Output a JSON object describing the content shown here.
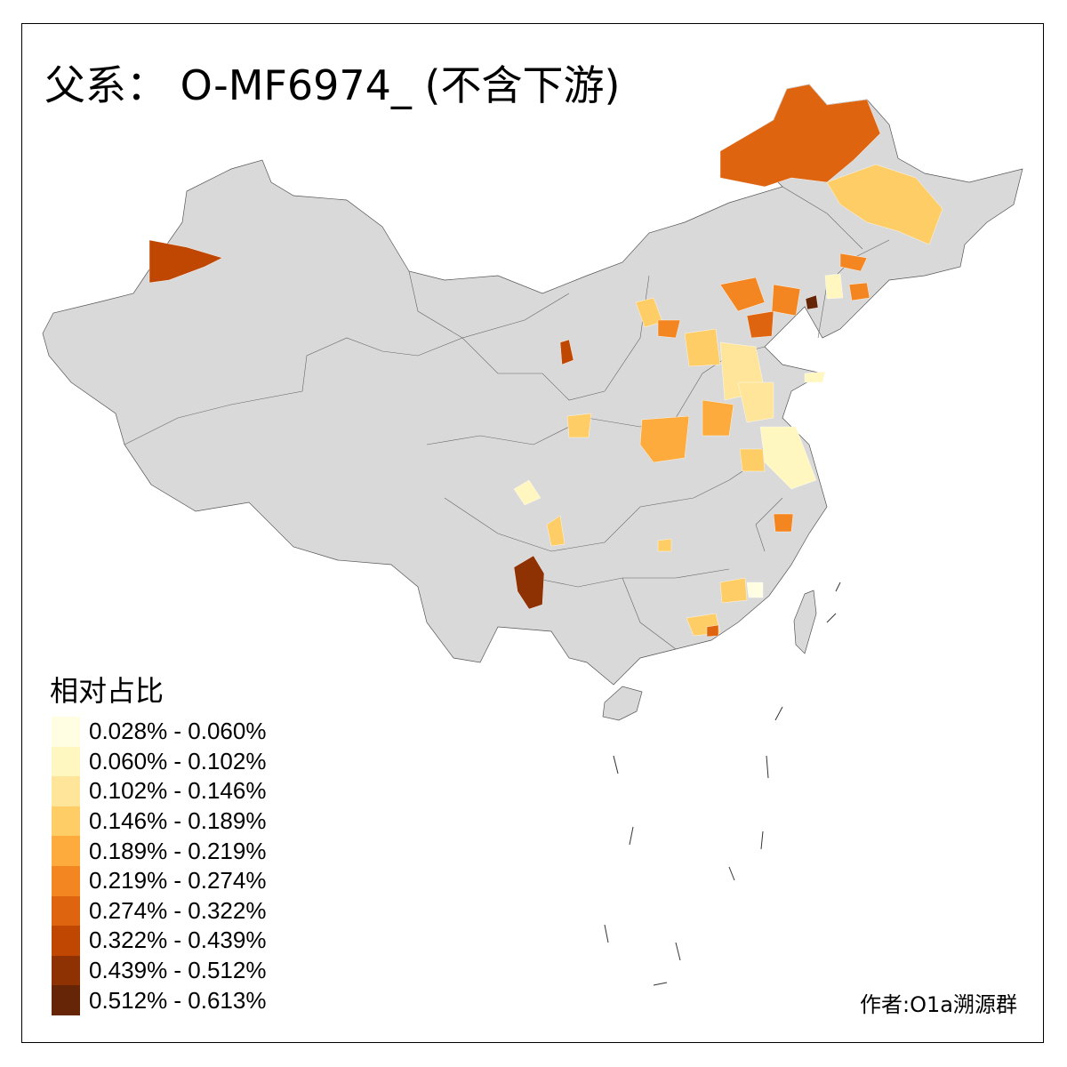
{
  "title": "父系： O-MF6974_ (不含下游)",
  "legend": {
    "title": "相对占比",
    "items": [
      {
        "label": "0.028% - 0.060%",
        "color": "#FFFEE2"
      },
      {
        "label": "0.060% - 0.102%",
        "color": "#FFF6C0"
      },
      {
        "label": "0.102% - 0.146%",
        "color": "#FEE59A"
      },
      {
        "label": "0.146% - 0.189%",
        "color": "#FECD66"
      },
      {
        "label": "0.189% - 0.219%",
        "color": "#FDAB3D"
      },
      {
        "label": "0.219% - 0.274%",
        "color": "#F38620"
      },
      {
        "label": "0.274% - 0.322%",
        "color": "#DF6410"
      },
      {
        "label": "0.322% - 0.439%",
        "color": "#BF4702"
      },
      {
        "label": "0.439% - 0.512%",
        "color": "#8E3103"
      },
      {
        "label": "0.512% - 0.613%",
        "color": "#662506"
      }
    ]
  },
  "no_data_color": "#D9D9D9",
  "credit": "作者:O1a溯源群"
}
